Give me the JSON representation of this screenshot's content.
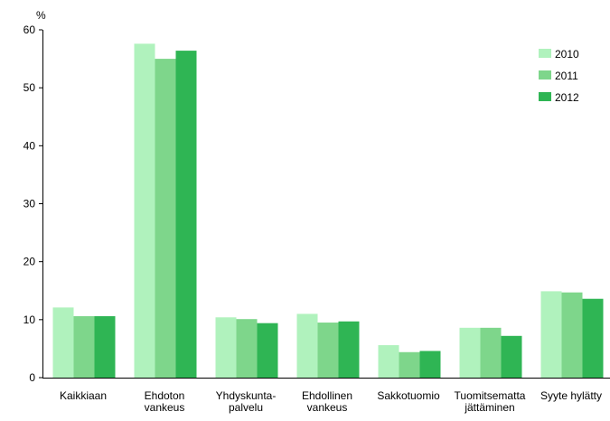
{
  "chart_data": {
    "type": "bar",
    "y_label": "%",
    "categories": [
      [
        "Kaikkiaan"
      ],
      [
        "Ehdoton",
        "vankeus"
      ],
      [
        "Yhdyskunta-",
        "palvelu"
      ],
      [
        "Ehdollinen",
        "vankeus"
      ],
      [
        "Sakkotuomio"
      ],
      [
        "Tuomitsematta",
        "jättäminen"
      ],
      [
        "Syyte hylätty"
      ]
    ],
    "series": [
      {
        "name": "2010",
        "color": "#b0f2bd",
        "values": [
          12.1,
          57.6,
          10.4,
          11.0,
          5.6,
          8.6,
          14.9
        ]
      },
      {
        "name": "2011",
        "color": "#7ed68b",
        "values": [
          10.6,
          55.0,
          10.1,
          9.5,
          4.4,
          8.6,
          14.7
        ]
      },
      {
        "name": "2012",
        "color": "#2fb554",
        "values": [
          10.6,
          56.4,
          9.4,
          9.7,
          4.6,
          7.2,
          13.6
        ]
      }
    ],
    "ylim": [
      0,
      60
    ],
    "yticks": [
      0,
      10,
      20,
      30,
      40,
      50,
      60
    ],
    "grid": false,
    "legend": "top-right"
  }
}
